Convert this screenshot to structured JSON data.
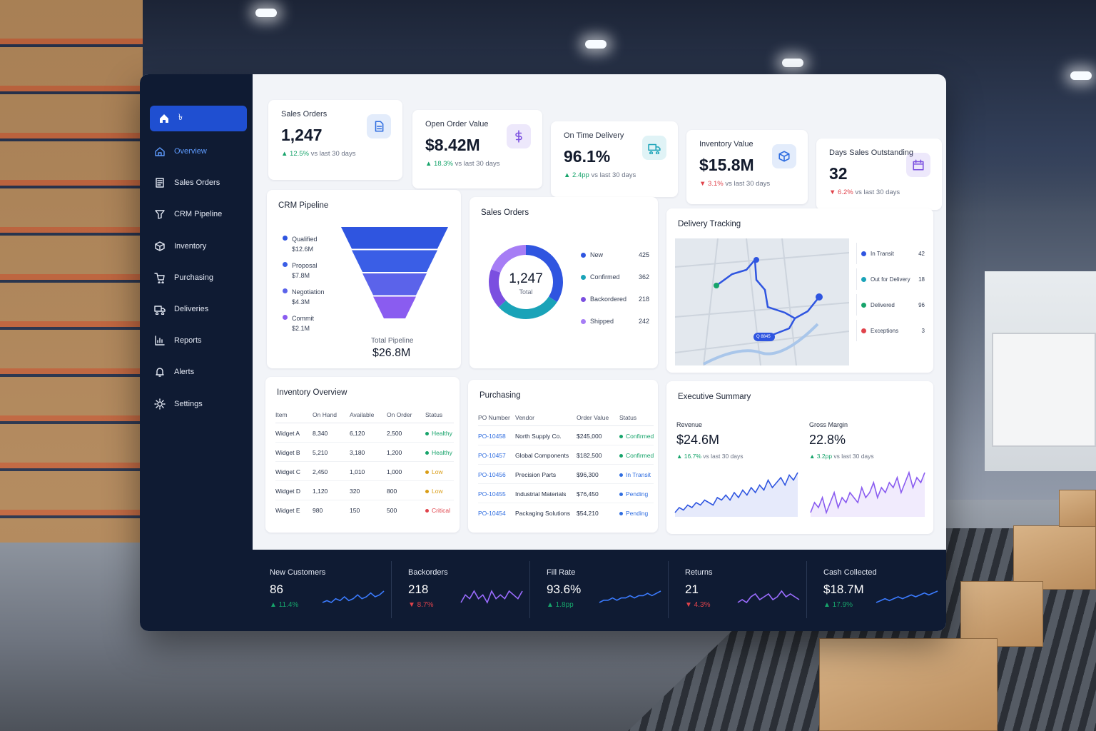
{
  "sidebar": {
    "brand_label": "৳",
    "items": [
      {
        "label": "Overview",
        "icon": "overview-icon"
      },
      {
        "label": "Sales Orders",
        "icon": "sales-orders-icon"
      },
      {
        "label": "CRM Pipeline",
        "icon": "crm-pipeline-icon"
      },
      {
        "label": "Inventory",
        "icon": "inventory-icon"
      },
      {
        "label": "Purchasing",
        "icon": "purchasing-icon"
      },
      {
        "label": "Deliveries",
        "icon": "deliveries-icon"
      },
      {
        "label": "Reports",
        "icon": "reports-icon"
      },
      {
        "label": "Alerts",
        "icon": "alerts-icon"
      },
      {
        "label": "Settings",
        "icon": "settings-icon"
      }
    ]
  },
  "kpis": [
    {
      "title": "Sales Orders",
      "value": "1,247",
      "delta": "▲ 12.5%",
      "note": "vs last 30 days",
      "icon": "document-icon",
      "accent": "#2f6de0",
      "trend": "up"
    },
    {
      "title": "Open Order Value",
      "value": "$8.42M",
      "delta": "▲ 18.3%",
      "note": "vs last 30 days",
      "icon": "dollar-icon",
      "accent": "#7b4fe0",
      "trend": "up"
    },
    {
      "title": "On Time Delivery",
      "value": "96.1%",
      "delta": "▲ 2.4pp",
      "note": "vs last 30 days",
      "icon": "truck-icon",
      "accent": "#1aa3b8",
      "trend": "up"
    },
    {
      "title": "Inventory Value",
      "value": "$15.8M",
      "delta": "▼ 3.1%",
      "note": "vs last 30 days",
      "icon": "cube-icon",
      "accent": "#2f6de0",
      "trend": "down"
    },
    {
      "title": "Days Sales Outstanding",
      "value": "32",
      "delta": "▼ 6.2%",
      "note": "vs last 30 days",
      "icon": "calendar-icon",
      "accent": "#7b4fe0",
      "trend": "down"
    }
  ],
  "crm": {
    "title": "CRM Pipeline",
    "stages": [
      {
        "name": "Qualified",
        "value": "$12.6M",
        "amount": 12.6,
        "color": "#2f55e0"
      },
      {
        "name": "Proposal",
        "value": "$7.8M",
        "amount": 7.8,
        "color": "#3a5ee6"
      },
      {
        "name": "Negotiation",
        "value": "$4.3M",
        "amount": 4.3,
        "color": "#5b63ea"
      },
      {
        "name": "Commit",
        "value": "$2.1M",
        "amount": 2.1,
        "color": "#8a5cf0"
      }
    ],
    "total_label": "Total Pipeline",
    "total_value": "$26.8M"
  },
  "sales_orders": {
    "title": "Sales Orders",
    "center_value": "1,247",
    "center_label": "Total",
    "segments": [
      {
        "name": "New",
        "count": "425",
        "value": 425,
        "color": "#2f55e0"
      },
      {
        "name": "Confirmed",
        "count": "362",
        "value": 362,
        "color": "#1aa3b8"
      },
      {
        "name": "Backordered",
        "count": "218",
        "value": 218,
        "color": "#7b4fe0"
      },
      {
        "name": "Shipped",
        "count": "242",
        "value": 242,
        "color": "#a67df5"
      }
    ]
  },
  "delivery": {
    "title": "Delivery Tracking",
    "map_label": "Q 8845",
    "statuses": [
      {
        "name": "In Transit",
        "count": "42",
        "color": "#2f55e0"
      },
      {
        "name": "Out for Delivery",
        "count": "18",
        "color": "#1aa3b8"
      },
      {
        "name": "Delivered",
        "count": "96",
        "color": "#17a46b"
      },
      {
        "name": "Exceptions",
        "count": "3",
        "color": "#e0434b"
      }
    ]
  },
  "inventory": {
    "title": "Inventory Overview",
    "columns": [
      "Item",
      "On Hand",
      "Available",
      "On Order",
      "Status"
    ],
    "rows": [
      [
        "Widget A",
        "8,340",
        "6,120",
        "2,500",
        "Healthy",
        "sgreen"
      ],
      [
        "Widget B",
        "5,210",
        "3,180",
        "1,200",
        "Healthy",
        "sgreen"
      ],
      [
        "Widget C",
        "2,450",
        "1,010",
        "1,000",
        "Low",
        "syellow"
      ],
      [
        "Widget D",
        "1,120",
        "320",
        "800",
        "Low",
        "syellow"
      ],
      [
        "Widget E",
        "980",
        "150",
        "500",
        "Critical",
        "sred"
      ]
    ]
  },
  "purchasing": {
    "title": "Purchasing",
    "columns": [
      "PO Number",
      "Vendor",
      "Order Value",
      "Status"
    ],
    "rows": [
      [
        "PO-10458",
        "North Supply Co.",
        "$245,000",
        "Confirmed",
        "sgreen"
      ],
      [
        "PO-10457",
        "Global Components",
        "$182,500",
        "Confirmed",
        "sgreen"
      ],
      [
        "PO-10456",
        "Precision Parts",
        "$96,300",
        "In Transit",
        "sblue"
      ],
      [
        "PO-10455",
        "Industrial Materials",
        "$76,450",
        "Pending",
        "sblue"
      ],
      [
        "PO-10454",
        "Packaging Solutions",
        "$54,210",
        "Pending",
        "sblue"
      ]
    ]
  },
  "executive": {
    "title": "Executive Summary",
    "revenue": {
      "label": "Revenue",
      "value": "$24.6M",
      "delta": "▲ 16.7%",
      "note": "vs last 30 days",
      "color": "#2f55e0",
      "series": [
        3,
        5,
        4,
        6,
        5,
        7,
        6,
        8,
        7,
        6,
        9,
        8,
        10,
        8,
        11,
        9,
        12,
        10,
        13,
        11,
        14,
        12,
        16,
        13,
        15,
        17,
        14,
        18,
        16,
        19
      ]
    },
    "margin": {
      "label": "Gross Margin",
      "value": "22.8%",
      "delta": "▲ 3.2pp",
      "note": "vs last 30 days",
      "color": "#8a5cf0",
      "series": [
        6,
        8,
        7,
        9,
        6,
        8,
        10,
        7,
        9,
        8,
        10,
        9,
        8,
        11,
        9,
        10,
        12,
        9,
        11,
        10,
        12,
        11,
        13,
        10,
        12,
        14,
        11,
        13,
        12,
        14
      ]
    }
  },
  "bottom_kpis": [
    {
      "title": "New Customers",
      "value": "86",
      "delta": "▲ 11.4%",
      "trend": "up",
      "color": "#3b7bff",
      "series": [
        4,
        5,
        4,
        6,
        5,
        7,
        5,
        6,
        8,
        6,
        7,
        9,
        7,
        8,
        10
      ]
    },
    {
      "title": "Backorders",
      "value": "218",
      "delta": "▼ 8.7%",
      "trend": "down",
      "color": "#9b6cff",
      "series": [
        5,
        7,
        6,
        8,
        6,
        7,
        5,
        8,
        6,
        7,
        6,
        8,
        7,
        6,
        8
      ]
    },
    {
      "title": "Fill Rate",
      "value": "93.6%",
      "delta": "▲ 1.8pp",
      "trend": "up",
      "color": "#3b7bff",
      "series": [
        4,
        5,
        5,
        6,
        5,
        6,
        6,
        7,
        6,
        7,
        7,
        8,
        7,
        8,
        9
      ]
    },
    {
      "title": "Returns",
      "value": "21",
      "delta": "▼ 4.3%",
      "trend": "down",
      "color": "#9b6cff",
      "series": [
        5,
        6,
        5,
        7,
        8,
        6,
        7,
        8,
        6,
        7,
        9,
        7,
        8,
        7,
        6
      ]
    },
    {
      "title": "Cash Collected",
      "value": "$18.7M",
      "delta": "▲ 17.9%",
      "trend": "up",
      "color": "#3b7bff",
      "series": [
        4,
        5,
        6,
        5,
        6,
        7,
        6,
        7,
        8,
        7,
        8,
        9,
        8,
        9,
        10
      ]
    }
  ]
}
